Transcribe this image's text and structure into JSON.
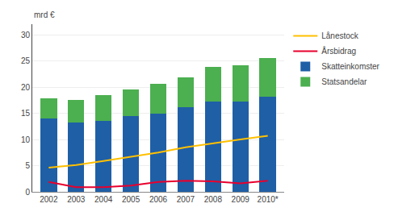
{
  "chart_data": {
    "type": "bar",
    "ylabel": "mrd €",
    "categories": [
      "2002",
      "2003",
      "2004",
      "2005",
      "2006",
      "2007",
      "2008",
      "2009",
      "2010*"
    ],
    "series": [
      {
        "name": "Statsandelar",
        "type": "bar",
        "color": "#4CAF50",
        "values": [
          3.8,
          4.2,
          4.9,
          5.1,
          5.6,
          5.7,
          6.5,
          6.9,
          7.4
        ]
      },
      {
        "name": "Skatteinkomster",
        "type": "bar",
        "color": "#1F5FA6",
        "values": [
          14.0,
          13.3,
          13.5,
          14.4,
          15.0,
          16.1,
          17.3,
          17.3,
          18.1
        ]
      },
      {
        "name": "Årsbidrag",
        "type": "line",
        "color": "#E8002D",
        "values": [
          1.9,
          0.9,
          0.9,
          1.2,
          1.9,
          2.1,
          2.0,
          1.6,
          2.1
        ]
      },
      {
        "name": "Lånestock",
        "type": "line",
        "color": "#FFC000",
        "values": [
          4.6,
          5.1,
          5.9,
          6.7,
          7.5,
          8.5,
          9.3,
          10.0,
          10.7
        ]
      }
    ],
    "stacked": true,
    "ylim": [
      0,
      32
    ],
    "yticks": [
      0,
      5,
      10,
      15,
      20,
      25,
      30
    ],
    "grid": true,
    "legend": "right"
  }
}
